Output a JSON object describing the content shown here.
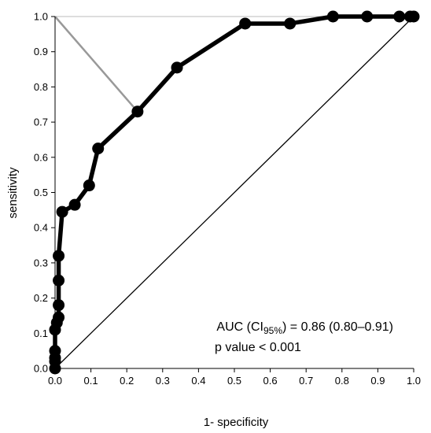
{
  "chart_data": {
    "type": "line",
    "title": "",
    "xlabel": "1- specificity",
    "ylabel": "sensitivity",
    "xlim": [
      0,
      1
    ],
    "ylim": [
      0,
      1
    ],
    "x_ticks": [
      "0.0",
      "0.1",
      "0.2",
      "0.3",
      "0.4",
      "0.5",
      "0.6",
      "0.7",
      "0.8",
      "0.9",
      "1.0"
    ],
    "y_ticks": [
      "0.0",
      "0.1",
      "0.2",
      "0.3",
      "0.4",
      "0.5",
      "0.6",
      "0.7",
      "0.8",
      "0.9",
      "1.0"
    ],
    "grid": false,
    "series": [
      {
        "name": "",
        "color": "#000000",
        "x": [
          0,
          0,
          0,
          0,
          0,
          0.005,
          0.01,
          0.01,
          0.01,
          0.01,
          0.02,
          0.055,
          0.095,
          0.12,
          0.23,
          0.34,
          0.53,
          0.655,
          0.775,
          0.87,
          0.96,
          0.99,
          1.0
        ],
        "y": [
          0,
          0.02,
          0.03,
          0.05,
          0.11,
          0.13,
          0.145,
          0.18,
          0.25,
          0.32,
          0.445,
          0.465,
          0.52,
          0.625,
          0.73,
          0.855,
          0.98,
          0.98,
          1.0,
          1.0,
          1.0,
          1.0,
          1.0
        ]
      }
    ],
    "reference_line": {
      "x": [
        0,
        1
      ],
      "y": [
        0,
        1
      ],
      "color": "#000000"
    },
    "youden_segment": {
      "x": [
        0,
        0.23
      ],
      "y": [
        1.0,
        0.73
      ],
      "color": "#999999"
    },
    "top_border": {
      "x": [
        0,
        1
      ],
      "y": [
        1.0,
        1.0
      ],
      "color": "#bbbbbb"
    },
    "annotation": {
      "auc_prefix": "AUC (CI",
      "auc_sub": "95%",
      "auc_suffix": ") = 0.86 (0.80–0.91)",
      "pvalue": "p value < 0.001"
    }
  }
}
